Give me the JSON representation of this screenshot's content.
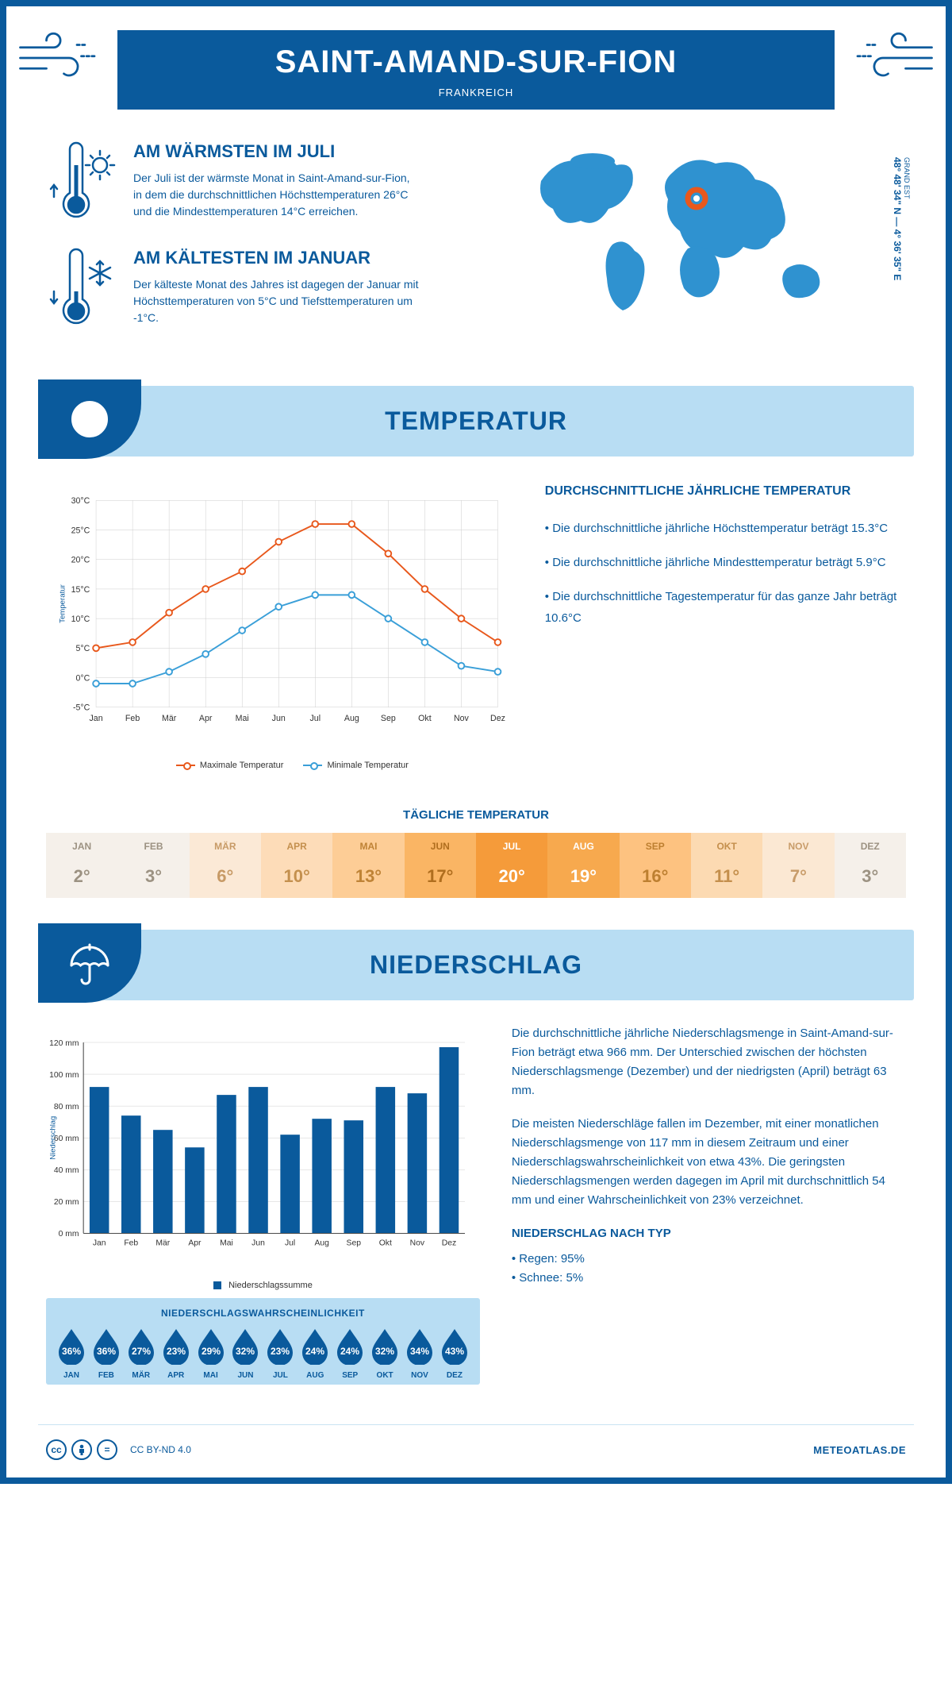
{
  "header": {
    "title": "SAINT-AMAND-SUR-FION",
    "subtitle": "FRANKREICH"
  },
  "coords": {
    "region": "GRAND EST",
    "text": "48° 48' 34\" N — 4° 36' 35\" E"
  },
  "warm": {
    "title": "AM WÄRMSTEN IM JULI",
    "text": "Der Juli ist der wärmste Monat in Saint-Amand-sur-Fion, in dem die durchschnittlichen Höchsttemperaturen 26°C und die Mindesttemperaturen 14°C erreichen."
  },
  "cold": {
    "title": "AM KÄLTESTEN IM JANUAR",
    "text": "Der kälteste Monat des Jahres ist dagegen der Januar mit Höchsttemperaturen von 5°C und Tiefsttemperaturen um -1°C."
  },
  "temperature": {
    "banner": "TEMPERATUR",
    "info_title": "DURCHSCHNITTLICHE JÄHRLICHE TEMPERATUR",
    "info_lines": [
      "• Die durchschnittliche jährliche Höchsttemperatur beträgt 15.3°C",
      "• Die durchschnittliche jährliche Mindesttemperatur beträgt 5.9°C",
      "• Die durchschnittliche Tagestemperatur für das ganze Jahr beträgt 10.6°C"
    ],
    "chart": {
      "months": [
        "Jan",
        "Feb",
        "Mär",
        "Apr",
        "Mai",
        "Jun",
        "Jul",
        "Aug",
        "Sep",
        "Okt",
        "Nov",
        "Dez"
      ],
      "max": [
        5,
        6,
        11,
        15,
        18,
        23,
        26,
        26,
        21,
        15,
        10,
        6
      ],
      "min": [
        -1,
        -1,
        1,
        4,
        8,
        12,
        14,
        14,
        10,
        6,
        2,
        1
      ],
      "ylim": [
        -5,
        30
      ],
      "ytick_step": 5,
      "ylabel": "Temperatur",
      "legend_max": "Maximale Temperatur",
      "legend_min": "Minimale Temperatur",
      "max_color": "#e8581c",
      "min_color": "#3a9fd8",
      "grid_color": "#cccccc"
    },
    "daily": {
      "title": "TÄGLICHE TEMPERATUR",
      "months": [
        "JAN",
        "FEB",
        "MÄR",
        "APR",
        "MAI",
        "JUN",
        "JUL",
        "AUG",
        "SEP",
        "OKT",
        "NOV",
        "DEZ"
      ],
      "values": [
        "2°",
        "3°",
        "6°",
        "10°",
        "13°",
        "17°",
        "20°",
        "19°",
        "16°",
        "11°",
        "7°",
        "3°"
      ],
      "bg_colors": [
        "#f5f0ea",
        "#f5f0ea",
        "#fbe9d6",
        "#fddcb8",
        "#fdcd96",
        "#fab564",
        "#f59b3a",
        "#f7a94e",
        "#fdc280",
        "#fcdab2",
        "#fbe8d3",
        "#f5f0ea"
      ],
      "text_colors": [
        "#9c9282",
        "#9c9282",
        "#c79a66",
        "#c4904e",
        "#bf8336",
        "#b06e1e",
        "#ffffff",
        "#ffffff",
        "#bd7f30",
        "#c48f4c",
        "#c89c6a",
        "#9c9282"
      ]
    }
  },
  "precip": {
    "banner": "NIEDERSCHLAG",
    "para1": "Die durchschnittliche jährliche Niederschlagsmenge in Saint-Amand-sur-Fion beträgt etwa 966 mm. Der Unterschied zwischen der höchsten Niederschlagsmenge (Dezember) und der niedrigsten (April) beträgt 63 mm.",
    "para2": "Die meisten Niederschläge fallen im Dezember, mit einer monatlichen Niederschlagsmenge von 117 mm in diesem Zeitraum und einer Niederschlagswahrscheinlichkeit von etwa 43%. Die geringsten Niederschlagsmengen werden dagegen im April mit durchschnittlich 54 mm und einer Wahrscheinlichkeit von 23% verzeichnet.",
    "type_title": "NIEDERSCHLAG NACH TYP",
    "type_lines": [
      "• Regen: 95%",
      "• Schnee: 5%"
    ],
    "chart": {
      "months": [
        "Jan",
        "Feb",
        "Mär",
        "Apr",
        "Mai",
        "Jun",
        "Jul",
        "Aug",
        "Sep",
        "Okt",
        "Nov",
        "Dez"
      ],
      "values": [
        92,
        74,
        65,
        54,
        87,
        92,
        62,
        72,
        71,
        92,
        88,
        117
      ],
      "ylim": [
        0,
        120
      ],
      "ytick_step": 20,
      "ylabel": "Niederschlag",
      "legend": "Niederschlagssumme",
      "bar_color": "#0a5a9c"
    },
    "prob": {
      "title": "NIEDERSCHLAGSWAHRSCHEINLICHKEIT",
      "months": [
        "JAN",
        "FEB",
        "MÄR",
        "APR",
        "MAI",
        "JUN",
        "JUL",
        "AUG",
        "SEP",
        "OKT",
        "NOV",
        "DEZ"
      ],
      "values": [
        "36%",
        "36%",
        "27%",
        "23%",
        "29%",
        "32%",
        "23%",
        "24%",
        "24%",
        "32%",
        "34%",
        "43%"
      ]
    }
  },
  "footer": {
    "license": "CC BY-ND 4.0",
    "brand": "METEOATLAS.DE"
  }
}
